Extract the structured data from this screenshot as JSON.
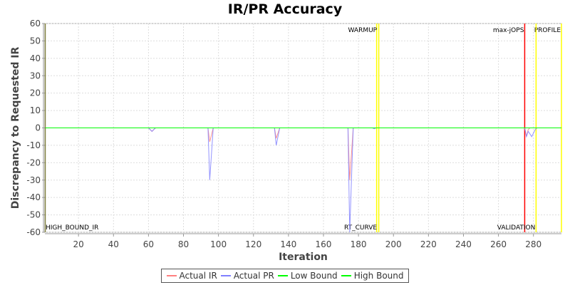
{
  "chart_data": {
    "type": "line",
    "title": "IR/PR Accuracy",
    "xlabel": "Iteration",
    "ylabel": "Discrepancy to Requested IR",
    "xlim": [
      0,
      296
    ],
    "ylim": [
      -60,
      60
    ],
    "x_ticks": [
      20,
      40,
      60,
      80,
      100,
      120,
      140,
      160,
      180,
      200,
      220,
      240,
      260,
      280
    ],
    "y_ticks": [
      60,
      50,
      40,
      30,
      20,
      10,
      0,
      -10,
      -20,
      -30,
      -40,
      -50,
      -60
    ],
    "grid": true,
    "legend_position": "bottom",
    "series": [
      {
        "name": "Actual IR",
        "color": "#ff8080",
        "points": [
          [
            1,
            0
          ],
          [
            60,
            0
          ],
          [
            62,
            -2
          ],
          [
            64,
            0
          ],
          [
            94,
            0
          ],
          [
            95,
            -8
          ],
          [
            97,
            0
          ],
          [
            132,
            0
          ],
          [
            133,
            -6
          ],
          [
            135,
            0
          ],
          [
            174,
            0
          ],
          [
            175,
            -30
          ],
          [
            177,
            0
          ],
          [
            275,
            0
          ],
          [
            276,
            -5
          ],
          [
            277,
            -1
          ],
          [
            278,
            0
          ],
          [
            296,
            0
          ]
        ]
      },
      {
        "name": "Actual PR",
        "color": "#8080ff",
        "points": [
          [
            1,
            0
          ],
          [
            60,
            0
          ],
          [
            62,
            -2
          ],
          [
            64,
            0
          ],
          [
            94,
            0
          ],
          [
            95,
            -30
          ],
          [
            97,
            0
          ],
          [
            132,
            0
          ],
          [
            133,
            -10
          ],
          [
            135,
            0
          ],
          [
            174,
            0
          ],
          [
            175,
            -60
          ],
          [
            177,
            0
          ],
          [
            188,
            0
          ],
          [
            189,
            -0.5
          ],
          [
            190,
            0
          ],
          [
            275,
            0
          ],
          [
            276,
            -5
          ],
          [
            277,
            -2
          ],
          [
            279,
            -5
          ],
          [
            281,
            -1
          ],
          [
            282,
            0
          ],
          [
            296,
            0
          ]
        ]
      },
      {
        "name": "Low Bound",
        "color": "#00ff00",
        "points": [
          [
            1,
            0
          ],
          [
            296,
            0
          ]
        ]
      },
      {
        "name": "High Bound",
        "color": "#00ff00",
        "points": [
          [
            1,
            0
          ],
          [
            296,
            0
          ]
        ]
      }
    ],
    "markers": [
      {
        "label": "HIGH_BOUND_IR",
        "x": 1,
        "color": "#808040",
        "label_pos": "bottom"
      },
      {
        "label": "WARMUP",
        "x": 191,
        "color": "#ffff00",
        "label_pos": "top"
      },
      {
        "label": "RT_CURVE",
        "x": 191,
        "color": "#ffff00",
        "label_pos": "bottom"
      },
      {
        "label": "max-jOPS",
        "x": 275,
        "color": "#ff0000",
        "label_pos": "top"
      },
      {
        "label": "PROFILE",
        "x": 296,
        "color": "#ffff00",
        "label_pos": "top"
      },
      {
        "label": "VALIDATION",
        "x": 281.5,
        "color": "#ffff00",
        "label_pos": "bottom"
      }
    ]
  }
}
